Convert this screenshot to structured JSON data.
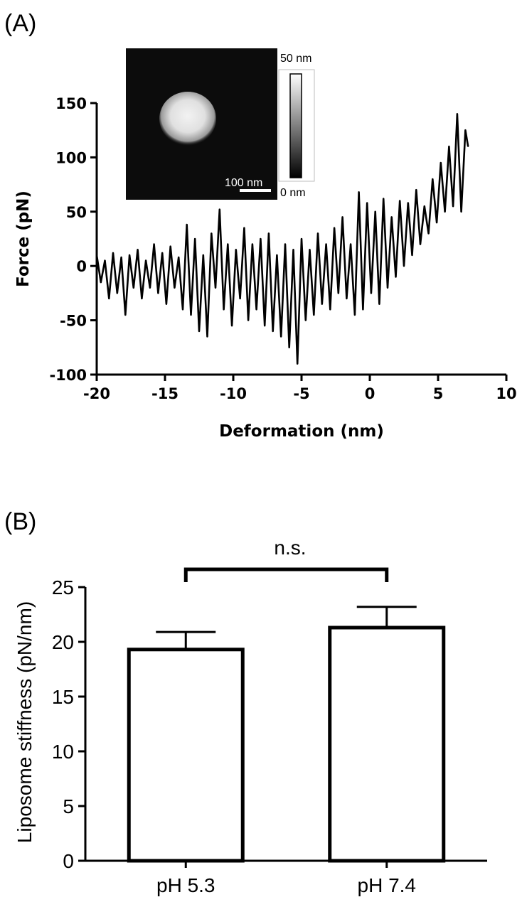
{
  "chart_data": [
    {
      "panel_label": "(A)",
      "type": "line",
      "xlabel": "Deformation (nm)",
      "ylabel": "Force (pN)",
      "xlim": [
        -20,
        10
      ],
      "ylim": [
        -100,
        150
      ],
      "xticks": [
        -20,
        -15,
        -10,
        -5,
        0,
        5,
        10
      ],
      "yticks": [
        -100,
        -50,
        0,
        50,
        100,
        150
      ],
      "grid": false,
      "series": [
        {
          "x": [
            -20.0,
            -19.7,
            -19.4,
            -19.1,
            -18.8,
            -18.5,
            -18.2,
            -17.9,
            -17.6,
            -17.3,
            -17.0,
            -16.7,
            -16.4,
            -16.1,
            -15.8,
            -15.5,
            -15.2,
            -14.9,
            -14.6,
            -14.3,
            -14.0,
            -13.7,
            -13.4,
            -13.1,
            -12.8,
            -12.5,
            -12.2,
            -11.9,
            -11.6,
            -11.3,
            -11.0,
            -10.7,
            -10.4,
            -10.1,
            -9.8,
            -9.5,
            -9.2,
            -8.9,
            -8.6,
            -8.3,
            -8.0,
            -7.7,
            -7.4,
            -7.1,
            -6.8,
            -6.5,
            -6.2,
            -5.9,
            -5.6,
            -5.3,
            -5.0,
            -4.7,
            -4.4,
            -4.1,
            -3.8,
            -3.5,
            -3.2,
            -2.9,
            -2.6,
            -2.3,
            -2.0,
            -1.7,
            -1.4,
            -1.1,
            -0.8,
            -0.5,
            -0.2,
            0.1,
            0.4,
            0.7,
            1.0,
            1.3,
            1.6,
            1.9,
            2.2,
            2.5,
            2.8,
            3.1,
            3.4,
            3.7,
            4.0,
            4.3,
            4.6,
            4.9,
            5.2,
            5.5,
            5.8,
            6.1,
            6.4,
            6.7,
            7.0,
            7.2
          ],
          "y": [
            10,
            -15,
            5,
            -30,
            12,
            -25,
            8,
            -45,
            10,
            -20,
            15,
            -30,
            5,
            -20,
            20,
            -25,
            12,
            -35,
            18,
            -20,
            8,
            -40,
            38,
            -45,
            25,
            -60,
            10,
            -65,
            30,
            -20,
            52,
            -40,
            20,
            -55,
            15,
            -30,
            35,
            -50,
            20,
            -40,
            25,
            -55,
            30,
            -60,
            10,
            -65,
            20,
            -75,
            15,
            -90,
            25,
            -50,
            15,
            -45,
            30,
            -35,
            20,
            -40,
            35,
            -25,
            45,
            -30,
            20,
            -45,
            68,
            -40,
            58,
            -25,
            50,
            -35,
            62,
            -20,
            45,
            -10,
            60,
            0,
            58,
            10,
            70,
            20,
            55,
            30,
            80,
            40,
            95,
            50,
            110,
            55,
            140,
            50,
            125,
            110
          ]
        }
      ],
      "inset": {
        "colorbar_max": "50 nm",
        "colorbar_min": "0 nm",
        "scale_bar": "100 nm"
      }
    },
    {
      "panel_label": "(B)",
      "type": "bar",
      "categories": [
        "pH 5.3",
        "pH 7.4"
      ],
      "values": [
        19.3,
        21.3
      ],
      "errors": [
        1.6,
        1.9
      ],
      "xlabel": "",
      "ylabel": "Liposome stiffness (pN/nm)",
      "ylim": [
        0,
        25
      ],
      "yticks": [
        0,
        5,
        10,
        15,
        20,
        25
      ],
      "grid": false,
      "annotation": "n.s.",
      "bar_fill": "#ffffff",
      "bar_edge": "#000000"
    }
  ]
}
